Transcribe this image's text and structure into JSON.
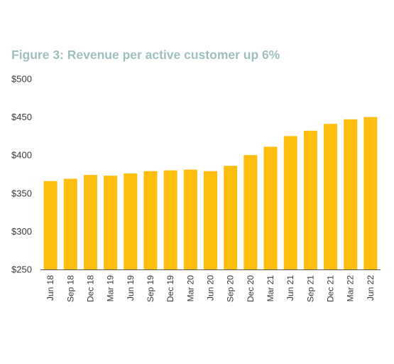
{
  "title": "Figure 3:  Revenue per active customer up 6%",
  "colors": {
    "bar": "#fdbe10",
    "title": "#9fbfbe",
    "axis": "#555555",
    "text": "#3a3a3a"
  },
  "chart_data": {
    "type": "bar",
    "title": "Figure 3:  Revenue per active customer up 6%",
    "xlabel": "",
    "ylabel": "",
    "categories": [
      "Jun 18",
      "Sep 18",
      "Dec 18",
      "Mar 19",
      "Jun 19",
      "Sep 19",
      "Dec 19",
      "Mar 20",
      "Jun 20",
      "Sep 20",
      "Dec 20",
      "Mar 21",
      "Jun 21",
      "Sep 21",
      "Dec 21",
      "Mar 22",
      "Jun 22"
    ],
    "values": [
      366,
      369,
      374,
      373,
      376,
      379,
      380,
      381,
      379,
      386,
      400,
      411,
      425,
      432,
      441,
      447,
      450
    ],
    "ylim": [
      250,
      500
    ],
    "yticks": [
      250,
      300,
      350,
      400,
      450,
      500
    ],
    "ytick_labels": [
      "$250",
      "$300",
      "$350",
      "$400",
      "$450",
      "$500"
    ],
    "grid": false,
    "legend": "none"
  }
}
